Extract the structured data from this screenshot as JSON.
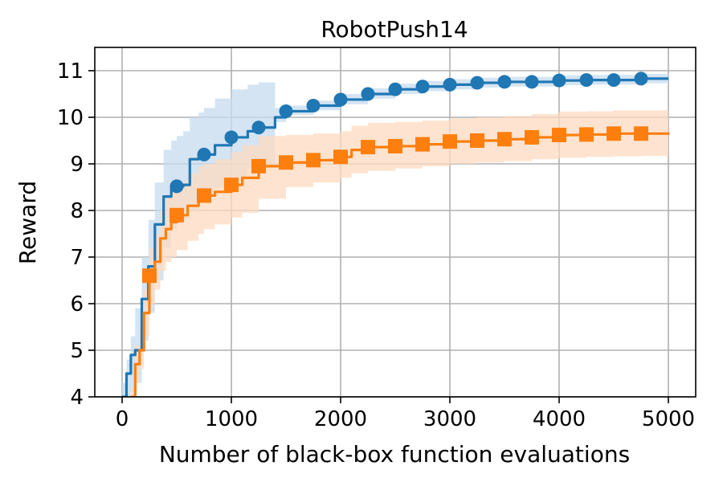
{
  "chart_data": {
    "type": "line",
    "title": "RobotPush14",
    "xlabel": "Number of black-box function evaluations",
    "ylabel": "Reward",
    "xlim": [
      -250,
      5250
    ],
    "ylim": [
      4,
      11.5
    ],
    "xticks": [
      0,
      1000,
      2000,
      3000,
      4000,
      5000
    ],
    "yticks": [
      4,
      5,
      6,
      7,
      8,
      9,
      10,
      11
    ],
    "grid": true,
    "legend": "none",
    "series": [
      {
        "color": "#1f77b4",
        "fill": "#c6dbef",
        "marker": "circle",
        "x": [
          0,
          40,
          80,
          120,
          180,
          240,
          300,
          380,
          450,
          500,
          560,
          620,
          700,
          750,
          850,
          1000,
          1150,
          1250,
          1400,
          1500,
          1750,
          2000,
          2250,
          2500,
          2750,
          3000,
          3250,
          3500,
          3750,
          4000,
          4250,
          4500,
          4750,
          5000
        ],
        "y": [
          4.0,
          4.5,
          4.9,
          5.0,
          6.1,
          6.8,
          7.7,
          8.3,
          8.5,
          8.52,
          8.55,
          9.1,
          9.15,
          9.2,
          9.4,
          9.57,
          9.7,
          9.78,
          10.0,
          10.13,
          10.25,
          10.38,
          10.5,
          10.6,
          10.66,
          10.7,
          10.74,
          10.76,
          10.76,
          10.79,
          10.8,
          10.8,
          10.83,
          10.83
        ],
        "lower": [
          3.8,
          3.9,
          4.1,
          4.3,
          5.2,
          5.8,
          6.5,
          7.2,
          7.6,
          7.7,
          7.8,
          8.0,
          8.2,
          8.3,
          8.5,
          8.7,
          8.9,
          9.0,
          9.9,
          10.05,
          10.15,
          10.28,
          10.4,
          10.5,
          10.56,
          10.6,
          10.64,
          10.66,
          10.66,
          10.69,
          10.7,
          10.7,
          10.73,
          10.73
        ],
        "upper": [
          4.3,
          4.8,
          5.3,
          5.9,
          7.0,
          7.8,
          8.6,
          9.3,
          9.5,
          9.6,
          9.7,
          10.0,
          10.1,
          10.2,
          10.4,
          10.6,
          10.7,
          10.75,
          10.2,
          10.25,
          10.36,
          10.5,
          10.62,
          10.72,
          10.78,
          10.82,
          10.85,
          10.87,
          10.87,
          10.9,
          10.91,
          10.91,
          10.93,
          10.93
        ],
        "markers_x": [
          250,
          500,
          750,
          1000,
          1250,
          1500,
          1750,
          2000,
          2250,
          2500,
          2750,
          3000,
          3250,
          3500,
          3750,
          4000,
          4250,
          4500,
          4750
        ],
        "markers_y": [
          6.6,
          8.52,
          9.2,
          9.57,
          9.78,
          10.13,
          10.25,
          10.38,
          10.5,
          10.6,
          10.66,
          10.7,
          10.74,
          10.76,
          10.76,
          10.79,
          10.8,
          10.8,
          10.83
        ]
      },
      {
        "color": "#ff7f0e",
        "fill": "#fddbc0",
        "marker": "square",
        "x": [
          80,
          120,
          160,
          200,
          250,
          300,
          350,
          400,
          450,
          500,
          600,
          700,
          750,
          850,
          1000,
          1100,
          1250,
          1500,
          1750,
          2000,
          2100,
          2250,
          2500,
          2750,
          3000,
          3250,
          3500,
          3750,
          4000,
          4250,
          4500,
          4750,
          5000
        ],
        "y": [
          4.0,
          4.7,
          5.0,
          5.8,
          6.6,
          6.9,
          7.4,
          7.6,
          7.75,
          7.9,
          8.1,
          8.25,
          8.32,
          8.4,
          8.55,
          8.7,
          8.95,
          9.03,
          9.08,
          9.15,
          9.3,
          9.36,
          9.38,
          9.42,
          9.48,
          9.5,
          9.53,
          9.57,
          9.62,
          9.63,
          9.65,
          9.65,
          9.67
        ],
        "lower": [
          3.8,
          4.3,
          4.6,
          5.3,
          6.0,
          6.3,
          6.7,
          6.9,
          7.0,
          7.15,
          7.35,
          7.5,
          7.6,
          7.7,
          7.85,
          7.95,
          8.25,
          8.5,
          8.6,
          8.7,
          8.8,
          8.85,
          8.9,
          8.95,
          9.0,
          9.03,
          9.06,
          9.1,
          9.13,
          9.15,
          9.16,
          9.17,
          9.18
        ],
        "upper": [
          4.2,
          5.1,
          5.5,
          6.3,
          7.2,
          7.5,
          8.0,
          8.3,
          8.45,
          8.6,
          8.8,
          8.95,
          9.0,
          9.1,
          9.25,
          9.4,
          9.6,
          9.62,
          9.65,
          9.7,
          9.82,
          9.88,
          9.9,
          9.93,
          9.98,
          10.0,
          10.03,
          10.07,
          10.12,
          10.13,
          10.15,
          10.15,
          10.18
        ],
        "markers_x": [
          250,
          500,
          750,
          1000,
          1250,
          1500,
          1750,
          2000,
          2250,
          2500,
          2750,
          3000,
          3250,
          3500,
          3750,
          4000,
          4250,
          4500,
          4750
        ],
        "markers_y": [
          6.6,
          7.9,
          8.32,
          8.55,
          8.95,
          9.03,
          9.08,
          9.15,
          9.36,
          9.38,
          9.42,
          9.48,
          9.5,
          9.53,
          9.57,
          9.62,
          9.63,
          9.65,
          9.65
        ]
      }
    ]
  }
}
